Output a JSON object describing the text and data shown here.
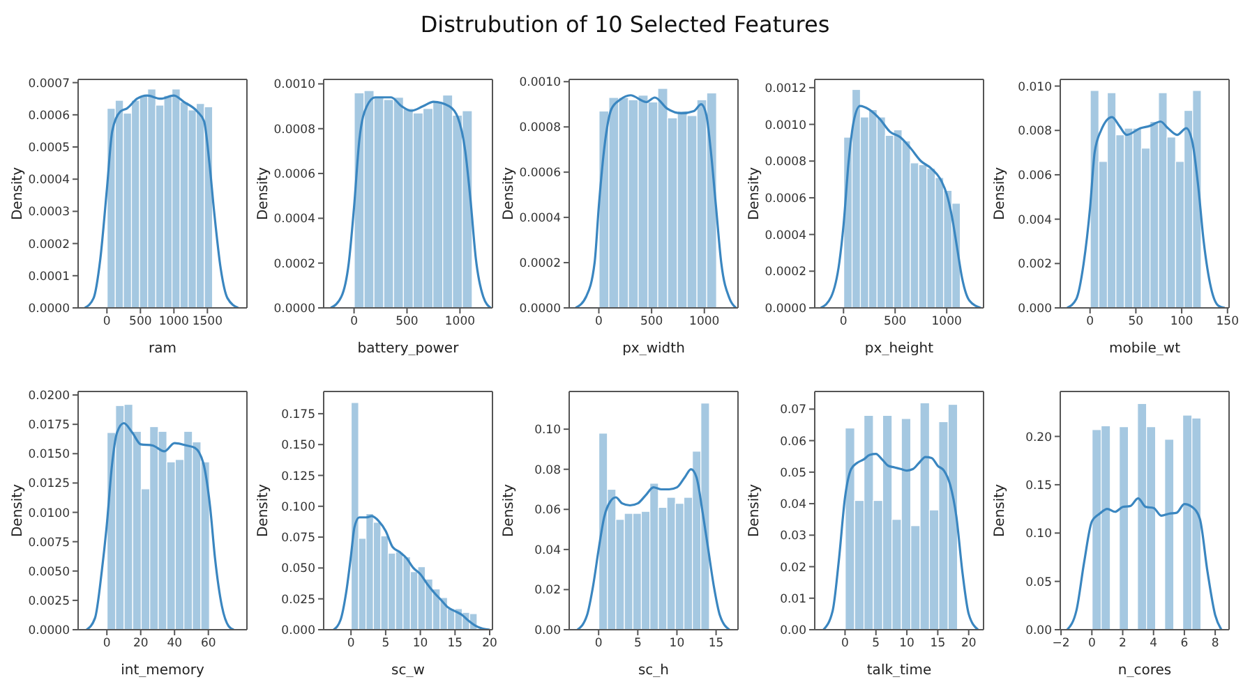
{
  "chart_data": [
    {
      "type": "histogram",
      "xlabel": "ram",
      "ylabel": "Density",
      "xlim": [
        -430,
        2090
      ],
      "xticks": [
        0,
        500,
        1000,
        1500
      ],
      "ylim": [
        0,
        0.00071
      ],
      "yticks": [
        {
          "value": 0,
          "label": "0.0000"
        },
        {
          "value": 0.0001,
          "label": "0.0001"
        },
        {
          "value": 0.0002,
          "label": "0.0002"
        },
        {
          "value": 0.0003,
          "label": "0.0003"
        },
        {
          "value": 0.0004,
          "label": "0.0004"
        },
        {
          "value": 0.0005,
          "label": "0.0005"
        },
        {
          "value": 0.0006,
          "label": "0.0006"
        },
        {
          "value": 0.0007,
          "label": "0.0007"
        }
      ],
      "series": [
        {
          "type": "histogram",
          "color": "#a5c8e1",
          "bins": [
            0,
            120,
            240,
            360,
            480,
            600,
            720,
            840,
            960,
            1080,
            1200,
            1320,
            1440,
            1560
          ],
          "values": [
            0.00062,
            0.000645,
            0.000605,
            0.000645,
            0.00066,
            0.00068,
            0.00063,
            0.00066,
            0.00068,
            0.00064,
            0.000615,
            0.000635,
            0.000625
          ]
        },
        {
          "type": "line",
          "color": "#3a86c0",
          "x": [
            -330,
            -200,
            -100,
            0,
            80,
            200,
            300,
            450,
            600,
            800,
            1000,
            1150,
            1350,
            1450,
            1530,
            1600,
            1700,
            1800,
            1960
          ],
          "values": [
            0,
            3e-05,
            0.00015,
            0.00037,
            0.00055,
            0.00061,
            0.00062,
            0.00065,
            0.00066,
            0.00065,
            0.00066,
            0.00064,
            0.00061,
            0.00058,
            0.00045,
            0.0003,
            0.00012,
            3e-05,
            0
          ]
        }
      ]
    },
    {
      "type": "histogram",
      "xlabel": "battery_power",
      "ylabel": "Density",
      "xlim": [
        -287,
        1307
      ],
      "xticks": [
        0,
        500,
        1000
      ],
      "ylim": [
        0,
        0.00102
      ],
      "yticks": [
        {
          "value": 0,
          "label": "0.0000"
        },
        {
          "value": 0.0002,
          "label": "0.0002"
        },
        {
          "value": 0.0004,
          "label": "0.0004"
        },
        {
          "value": 0.0006,
          "label": "0.0006"
        },
        {
          "value": 0.0008,
          "label": "0.0008"
        },
        {
          "value": 0.001,
          "label": "0.0010"
        }
      ],
      "series": [
        {
          "type": "histogram",
          "color": "#a5c8e1",
          "bins": [
            0,
            92,
            184,
            276,
            368,
            460,
            552,
            644,
            736,
            828,
            920,
            1012,
            1104
          ],
          "values": [
            0.00096,
            0.00097,
            0.00094,
            0.00093,
            0.00094,
            0.00089,
            0.00087,
            0.00089,
            0.00092,
            0.00095,
            0.00086,
            0.00088
          ]
        },
        {
          "type": "line",
          "color": "#3a86c0",
          "x": [
            -220,
            -120,
            -50,
            0,
            50,
            120,
            200,
            350,
            450,
            540,
            650,
            750,
            900,
            980,
            1050,
            1100,
            1150,
            1220,
            1290
          ],
          "values": [
            0,
            5e-05,
            0.0002,
            0.00045,
            0.00075,
            0.0009,
            0.00094,
            0.00094,
            0.0009,
            0.00088,
            0.0009,
            0.00092,
            0.0009,
            0.00085,
            0.0007,
            0.00048,
            0.00022,
            5e-05,
            0
          ]
        }
      ]
    },
    {
      "type": "histogram",
      "title": "Distrubution of 10 Selected Features",
      "xlabel": "px_width",
      "ylabel": "Density",
      "xlim": [
        -281,
        1319
      ],
      "xticks": [
        0,
        500,
        1000
      ],
      "ylim": [
        0,
        0.00101
      ],
      "yticks": [
        {
          "value": 0,
          "label": "0.0000"
        },
        {
          "value": 0.0002,
          "label": "0.0002"
        },
        {
          "value": 0.0004,
          "label": "0.0004"
        },
        {
          "value": 0.0006,
          "label": "0.0006"
        },
        {
          "value": 0.0008,
          "label": "0.0008"
        },
        {
          "value": 0.001,
          "label": "0.0010"
        }
      ],
      "series": [
        {
          "type": "histogram",
          "color": "#a5c8e1",
          "bins": [
            0,
            92,
            184,
            276,
            368,
            460,
            552,
            644,
            736,
            828,
            920,
            1012,
            1104
          ],
          "values": [
            0.00087,
            0.00093,
            0.00093,
            0.00092,
            0.00094,
            0.00091,
            0.00097,
            0.00084,
            0.00087,
            0.00085,
            0.00092,
            0.00095
          ]
        },
        {
          "type": "line",
          "color": "#3a86c0",
          "x": [
            -220,
            -120,
            -40,
            0,
            50,
            120,
            200,
            300,
            450,
            530,
            650,
            780,
            900,
            970,
            1020,
            1060,
            1110,
            1160,
            1240,
            1300
          ],
          "values": [
            0,
            5e-05,
            0.0002,
            0.00045,
            0.0007,
            0.00088,
            0.00092,
            0.00094,
            0.00091,
            0.00093,
            0.00088,
            0.00086,
            0.00087,
            0.0009,
            0.00085,
            0.0007,
            0.00045,
            0.0002,
            4e-05,
            0
          ]
        }
      ]
    },
    {
      "type": "histogram",
      "xlabel": "px_height",
      "ylabel": "Density",
      "xlim": [
        -279,
        1357
      ],
      "xticks": [
        0,
        500,
        1000
      ],
      "ylim": [
        0,
        0.001245
      ],
      "yticks": [
        {
          "value": 0,
          "label": "0.0000"
        },
        {
          "value": 0.0002,
          "label": "0.0002"
        },
        {
          "value": 0.0004,
          "label": "0.0004"
        },
        {
          "value": 0.0006,
          "label": "0.0006"
        },
        {
          "value": 0.0008,
          "label": "0.0008"
        },
        {
          "value": 0.001,
          "label": "0.0010"
        },
        {
          "value": 0.0012,
          "label": "0.0012"
        }
      ],
      "series": [
        {
          "type": "histogram",
          "color": "#a5c8e1",
          "bins": [
            0,
            80,
            160,
            240,
            320,
            400,
            480,
            560,
            640,
            720,
            800,
            880,
            960,
            1040,
            1120
          ],
          "values": [
            0.00093,
            0.00119,
            0.00104,
            0.00108,
            0.00104,
            0.00094,
            0.00097,
            0.00091,
            0.00079,
            0.00078,
            0.00076,
            0.00071,
            0.00064,
            0.00057
          ]
        },
        {
          "type": "line",
          "color": "#3a86c0",
          "x": [
            -220,
            -120,
            -40,
            0,
            50,
            100,
            160,
            250,
            350,
            450,
            550,
            650,
            750,
            850,
            950,
            1000,
            1050,
            1100,
            1150,
            1220,
            1330
          ],
          "values": [
            0,
            6e-05,
            0.00025,
            0.00045,
            0.0008,
            0.00102,
            0.0011,
            0.00108,
            0.00103,
            0.00096,
            0.00093,
            0.00087,
            0.0008,
            0.00076,
            0.00069,
            0.00062,
            0.0005,
            0.00033,
            0.00016,
            4e-05,
            0
          ]
        }
      ]
    },
    {
      "type": "histogram",
      "xlabel": "mobile_wt",
      "ylabel": "Density",
      "xlim": [
        -32.5,
        151.7
      ],
      "xticks": [
        0,
        50,
        100,
        150
      ],
      "ylim": [
        0,
        0.0103
      ],
      "yticks": [
        {
          "value": 0,
          "label": "0.000"
        },
        {
          "value": 0.002,
          "label": "0.002"
        },
        {
          "value": 0.004,
          "label": "0.004"
        },
        {
          "value": 0.006,
          "label": "0.006"
        },
        {
          "value": 0.008,
          "label": "0.008"
        },
        {
          "value": 0.01,
          "label": "0.010"
        }
      ],
      "series": [
        {
          "type": "histogram",
          "color": "#a5c8e1",
          "bins": [
            0,
            9.23,
            18.46,
            27.69,
            36.92,
            46.15,
            55.38,
            64.62,
            73.85,
            83.08,
            92.31,
            101.54,
            110.77,
            120
          ],
          "values": [
            0.0098,
            0.0066,
            0.0097,
            0.0078,
            0.0081,
            0.0081,
            0.0072,
            0.0084,
            0.0097,
            0.0077,
            0.0066,
            0.0089,
            0.0098
          ]
        },
        {
          "type": "line",
          "color": "#3a86c0",
          "x": [
            -25,
            -15,
            -7,
            0,
            5,
            12,
            24,
            32,
            40,
            55,
            65,
            77,
            85,
            95,
            105,
            112,
            118,
            124,
            132,
            140,
            147
          ],
          "values": [
            0,
            0.0004,
            0.002,
            0.0045,
            0.007,
            0.008,
            0.0086,
            0.0082,
            0.0078,
            0.0081,
            0.0082,
            0.0084,
            0.0081,
            0.0078,
            0.0081,
            0.0074,
            0.0055,
            0.003,
            0.0009,
            0.0001,
            0
          ]
        }
      ]
    },
    {
      "type": "histogram",
      "xlabel": "int_memory",
      "ylabel": "Density",
      "xlim": [
        -17,
        82.8
      ],
      "xticks": [
        0,
        20,
        40,
        60
      ],
      "ylim": [
        0,
        0.0203
      ],
      "yticks": [
        {
          "value": 0,
          "label": "0.0000"
        },
        {
          "value": 0.0025,
          "label": "0.0025"
        },
        {
          "value": 0.005,
          "label": "0.0050"
        },
        {
          "value": 0.0075,
          "label": "0.0075"
        },
        {
          "value": 0.01,
          "label": "0.0100"
        },
        {
          "value": 0.0125,
          "label": "0.0125"
        },
        {
          "value": 0.015,
          "label": "0.0150"
        },
        {
          "value": 0.0175,
          "label": "0.0175"
        },
        {
          "value": 0.02,
          "label": "0.0200"
        }
      ],
      "series": [
        {
          "type": "histogram",
          "color": "#a5c8e1",
          "bins": [
            0,
            5,
            10,
            15,
            20,
            25,
            30,
            35,
            40,
            45,
            50,
            55,
            60
          ],
          "values": [
            0.0168,
            0.0191,
            0.0192,
            0.0169,
            0.012,
            0.0173,
            0.0169,
            0.0143,
            0.0145,
            0.0169,
            0.016,
            0.0143
          ]
        },
        {
          "type": "line",
          "color": "#3a86c0",
          "x": [
            -12,
            -7,
            -3,
            0,
            3,
            6,
            10,
            15,
            20,
            27,
            34,
            40,
            47,
            52,
            57,
            61,
            64,
            68,
            72,
            75
          ],
          "values": [
            0,
            0.001,
            0.005,
            0.009,
            0.014,
            0.0168,
            0.0176,
            0.0168,
            0.0158,
            0.0157,
            0.0152,
            0.0159,
            0.0157,
            0.0155,
            0.0142,
            0.0105,
            0.006,
            0.002,
            0.0003,
            0
          ]
        }
      ]
    },
    {
      "type": "histogram",
      "xlabel": "sc_w",
      "ylabel": "Density",
      "xlim": [
        -3.94,
        20.4
      ],
      "xticks": [
        0,
        5,
        10,
        15,
        20
      ],
      "ylim": [
        0,
        0.193
      ],
      "yticks": [
        {
          "value": 0,
          "label": "0.000"
        },
        {
          "value": 0.025,
          "label": "0.025"
        },
        {
          "value": 0.05,
          "label": "0.050"
        },
        {
          "value": 0.075,
          "label": "0.075"
        },
        {
          "value": 0.1,
          "label": "0.100"
        },
        {
          "value": 0.125,
          "label": "0.125"
        },
        {
          "value": 0.15,
          "label": "0.150"
        },
        {
          "value": 0.175,
          "label": "0.175"
        }
      ],
      "series": [
        {
          "type": "histogram",
          "color": "#a5c8e1",
          "bins": [
            0,
            1.06,
            2.12,
            3.18,
            4.24,
            5.29,
            6.35,
            7.41,
            8.47,
            9.53,
            10.59,
            11.65,
            12.71,
            13.76,
            14.82,
            15.88,
            16.94,
            18
          ],
          "values": [
            0.184,
            0.074,
            0.094,
            0.087,
            0.076,
            0.062,
            0.063,
            0.059,
            0.047,
            0.051,
            0.041,
            0.033,
            0.026,
            0.017,
            0.017,
            0.014,
            0.013
          ]
        },
        {
          "type": "line",
          "color": "#3a86c0",
          "x": [
            -2.5,
            -1.5,
            -0.7,
            0,
            0.5,
            1.2,
            2.2,
            3,
            4,
            5,
            6,
            7,
            8,
            9,
            10,
            11,
            12,
            13,
            14,
            15,
            16,
            17,
            18,
            19,
            20
          ],
          "values": [
            0,
            0.008,
            0.03,
            0.06,
            0.083,
            0.091,
            0.091,
            0.092,
            0.088,
            0.08,
            0.067,
            0.063,
            0.058,
            0.05,
            0.045,
            0.037,
            0.03,
            0.024,
            0.018,
            0.015,
            0.012,
            0.007,
            0.003,
            0.0008,
            0
          ]
        }
      ]
    },
    {
      "type": "histogram",
      "xlabel": "sc_h",
      "ylabel": "Density",
      "xlim": [
        -3.76,
        17.8
      ],
      "xticks": [
        0,
        5,
        10,
        15
      ],
      "ylim": [
        0,
        0.1188
      ],
      "yticks": [
        {
          "value": 0,
          "label": "0.00"
        },
        {
          "value": 0.02,
          "label": "0.02"
        },
        {
          "value": 0.04,
          "label": "0.04"
        },
        {
          "value": 0.06,
          "label": "0.06"
        },
        {
          "value": 0.08,
          "label": "0.08"
        },
        {
          "value": 0.1,
          "label": "0.10"
        }
      ],
      "series": [
        {
          "type": "histogram",
          "color": "#a5c8e1",
          "bins": [
            0,
            1.08,
            2.15,
            3.23,
            4.31,
            5.38,
            6.46,
            7.54,
            8.62,
            9.69,
            10.77,
            11.85,
            12.92,
            14
          ],
          "values": [
            0.098,
            0.07,
            0.055,
            0.058,
            0.058,
            0.059,
            0.073,
            0.061,
            0.066,
            0.063,
            0.066,
            0.089,
            0.113
          ]
        },
        {
          "type": "line",
          "color": "#3a86c0",
          "x": [
            -2.7,
            -1.5,
            -0.7,
            0,
            0.7,
            1.5,
            2.2,
            3,
            4,
            5,
            6,
            7,
            8,
            9,
            10,
            11,
            11.8,
            12.5,
            13.3,
            14,
            14.7,
            15.5,
            16.7
          ],
          "values": [
            0,
            0.007,
            0.022,
            0.04,
            0.056,
            0.064,
            0.066,
            0.063,
            0.062,
            0.063,
            0.067,
            0.071,
            0.07,
            0.07,
            0.071,
            0.076,
            0.08,
            0.076,
            0.058,
            0.04,
            0.022,
            0.007,
            0
          ]
        }
      ]
    },
    {
      "type": "histogram",
      "xlabel": "talk_time",
      "ylabel": "Density",
      "xlim": [
        -4.9,
        22.4
      ],
      "xticks": [
        0,
        5,
        10,
        15,
        20
      ],
      "ylim": [
        0,
        0.0756
      ],
      "yticks": [
        {
          "value": 0,
          "label": "0.00"
        },
        {
          "value": 0.01,
          "label": "0.01"
        },
        {
          "value": 0.02,
          "label": "0.02"
        },
        {
          "value": 0.03,
          "label": "0.03"
        },
        {
          "value": 0.04,
          "label": "0.04"
        },
        {
          "value": 0.05,
          "label": "0.05"
        },
        {
          "value": 0.06,
          "label": "0.06"
        },
        {
          "value": 0.07,
          "label": "0.07"
        }
      ],
      "series": [
        {
          "type": "histogram",
          "color": "#a5c8e1",
          "bins": [
            0,
            1.5,
            3,
            4.5,
            6,
            7.5,
            9,
            10.5,
            12,
            13.5,
            15,
            16.5,
            18
          ],
          "values": [
            0.064,
            0.041,
            0.068,
            0.041,
            0.068,
            0.035,
            0.067,
            0.033,
            0.072,
            0.038,
            0.066,
            0.0715
          ]
        },
        {
          "type": "line",
          "color": "#3a86c0",
          "x": [
            -3.5,
            -2,
            -1,
            0,
            1,
            2,
            3,
            4,
            5,
            6,
            7,
            8,
            9,
            10,
            11,
            12,
            13,
            14,
            15,
            16,
            17,
            18,
            19,
            20,
            21.5
          ],
          "values": [
            0,
            0.006,
            0.022,
            0.042,
            0.051,
            0.053,
            0.054,
            0.0555,
            0.0558,
            0.054,
            0.052,
            0.0515,
            0.051,
            0.0505,
            0.051,
            0.053,
            0.0548,
            0.0545,
            0.052,
            0.0505,
            0.046,
            0.036,
            0.018,
            0.005,
            0
          ]
        }
      ]
    },
    {
      "type": "histogram",
      "xlabel": "n_cores",
      "ylabel": "Density",
      "xlim": [
        -2.05,
        8.9
      ],
      "xticks": [
        {
          "value": -2,
          "label": "−2"
        },
        0,
        2,
        4,
        6,
        8
      ],
      "ylim": [
        0,
        0.2465
      ],
      "yticks": [
        {
          "value": 0,
          "label": "0.00"
        },
        {
          "value": 0.05,
          "label": "0.05"
        },
        {
          "value": 0.1,
          "label": "0.10"
        },
        {
          "value": 0.15,
          "label": "0.15"
        },
        {
          "value": 0.2,
          "label": "0.20"
        }
      ],
      "series": [
        {
          "type": "histogram",
          "color": "#a5c8e1",
          "bins": [
            0,
            0.58,
            1.17,
            1.75,
            2.33,
            2.92,
            3.5,
            4.08,
            4.67,
            5.25,
            5.83,
            6.42,
            7
          ],
          "values": [
            0.207,
            0.211,
            0,
            0.21,
            0,
            0.234,
            0.21,
            0,
            0.197,
            0,
            0.222,
            0.219
          ]
        },
        {
          "type": "line",
          "color": "#3a86c0",
          "x": [
            -1.6,
            -1,
            -0.5,
            0,
            0.5,
            1,
            1.5,
            2,
            2.5,
            3,
            3.5,
            4,
            4.5,
            5,
            5.5,
            6,
            6.5,
            7,
            7.5,
            8,
            8.4
          ],
          "values": [
            0,
            0.02,
            0.07,
            0.112,
            0.12,
            0.125,
            0.122,
            0.127,
            0.128,
            0.136,
            0.127,
            0.126,
            0.118,
            0.12,
            0.121,
            0.13,
            0.127,
            0.115,
            0.06,
            0.015,
            0
          ]
        }
      ]
    }
  ]
}
